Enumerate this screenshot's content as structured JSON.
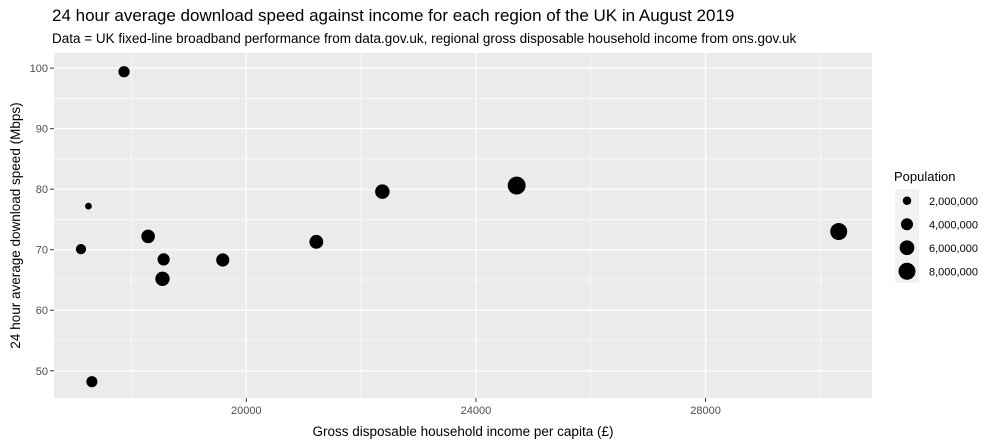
{
  "title": "24 hour average download speed against income for each region of the UK in August 2019",
  "subtitle": "Data = UK fixed-line broadband performance from data.gov.uk, regional gross disposable household income from ons.gov.uk",
  "chart_data": {
    "type": "scatter",
    "xlabel": "Gross disposable household income per capita (£)",
    "ylabel": "24 hour average download speed (Mbps)",
    "xlim": [
      16650,
      30900
    ],
    "ylim": [
      45.5,
      102.5
    ],
    "xticks": [
      20000,
      24000,
      28000
    ],
    "xtick_labels": [
      "20000",
      "24000",
      "28000"
    ],
    "yticks": [
      50,
      60,
      70,
      80,
      90,
      100
    ],
    "ytick_labels": [
      "50",
      "60",
      "70",
      "80",
      "90",
      "100"
    ],
    "grid": true,
    "legend": {
      "title": "Population",
      "placement": "right",
      "sizes": [
        2000000,
        4000000,
        6000000,
        8000000
      ],
      "labels": [
        "2,000,000",
        "4,000,000",
        "6,000,000",
        "8,000,000"
      ]
    },
    "points": [
      {
        "x": 17870,
        "y": 99.4,
        "size": 3500000
      },
      {
        "x": 17250,
        "y": 77.2,
        "size": 1250000
      },
      {
        "x": 17120,
        "y": 70.1,
        "size": 2900000
      },
      {
        "x": 17310,
        "y": 48.2,
        "size": 3400000
      },
      {
        "x": 18290,
        "y": 72.2,
        "size": 5100000
      },
      {
        "x": 18560,
        "y": 68.4,
        "size": 4100000
      },
      {
        "x": 18540,
        "y": 65.2,
        "size": 5700000
      },
      {
        "x": 19590,
        "y": 68.3,
        "size": 4800000
      },
      {
        "x": 21220,
        "y": 71.3,
        "size": 5300000
      },
      {
        "x": 22370,
        "y": 79.6,
        "size": 5800000
      },
      {
        "x": 24710,
        "y": 80.6,
        "size": 8900000
      },
      {
        "x": 30320,
        "y": 73.0,
        "size": 8000000
      }
    ]
  }
}
